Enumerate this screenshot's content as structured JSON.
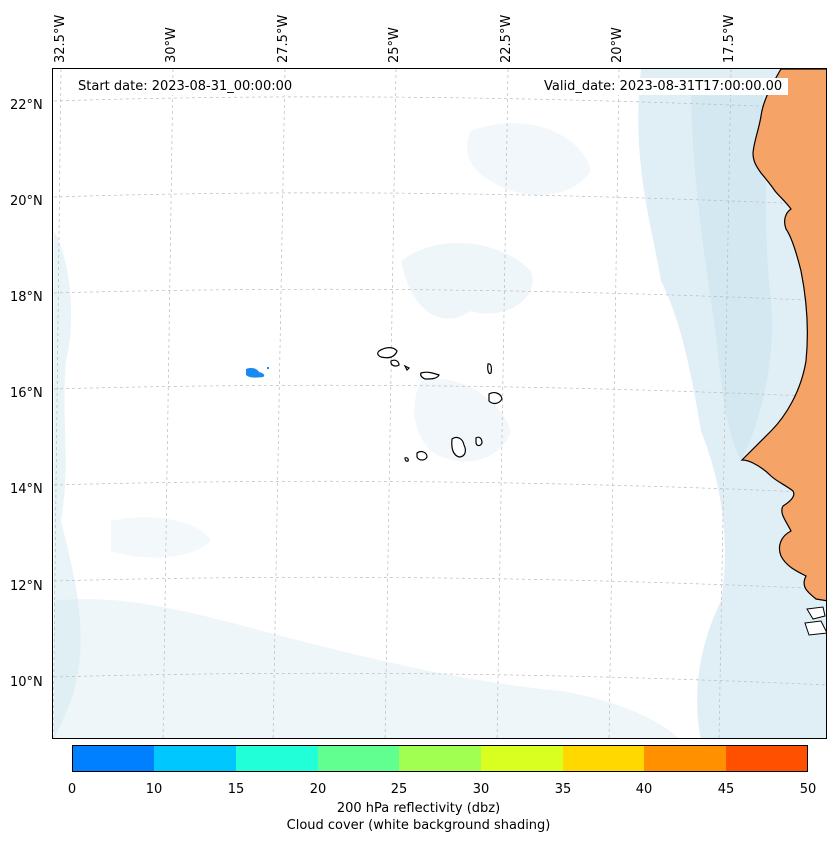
{
  "map": {
    "start_date_text": "Start date: 2023-08-31_00:00:00",
    "valid_date_text": "Valid_date: 2023-08-31T17:00:00.00",
    "lon_labels": [
      "32.5°W",
      "30°W",
      "27.5°W",
      "25°W",
      "22.5°W",
      "20°W",
      "17.5°W"
    ],
    "lat_labels": [
      "22°N",
      "20°N",
      "18°N",
      "16°N",
      "14°N",
      "12°N",
      "10°N"
    ],
    "land_color": "#f5a366",
    "cloud_color": "#cfe6ef",
    "reflectivity_spot_color": "#1a8af0"
  },
  "colorbar": {
    "ticks": [
      "0",
      "10",
      "15",
      "20",
      "25",
      "30",
      "35",
      "40",
      "45",
      "50"
    ],
    "colors": [
      "#0080ff",
      "#00c8ff",
      "#20ffd8",
      "#60ff90",
      "#a0ff50",
      "#d8ff20",
      "#ffd800",
      "#ff9000",
      "#ff5000"
    ],
    "label_line1": "200 hPa reflectivity (dbz)",
    "label_line2": "Cloud cover (white background shading)"
  }
}
